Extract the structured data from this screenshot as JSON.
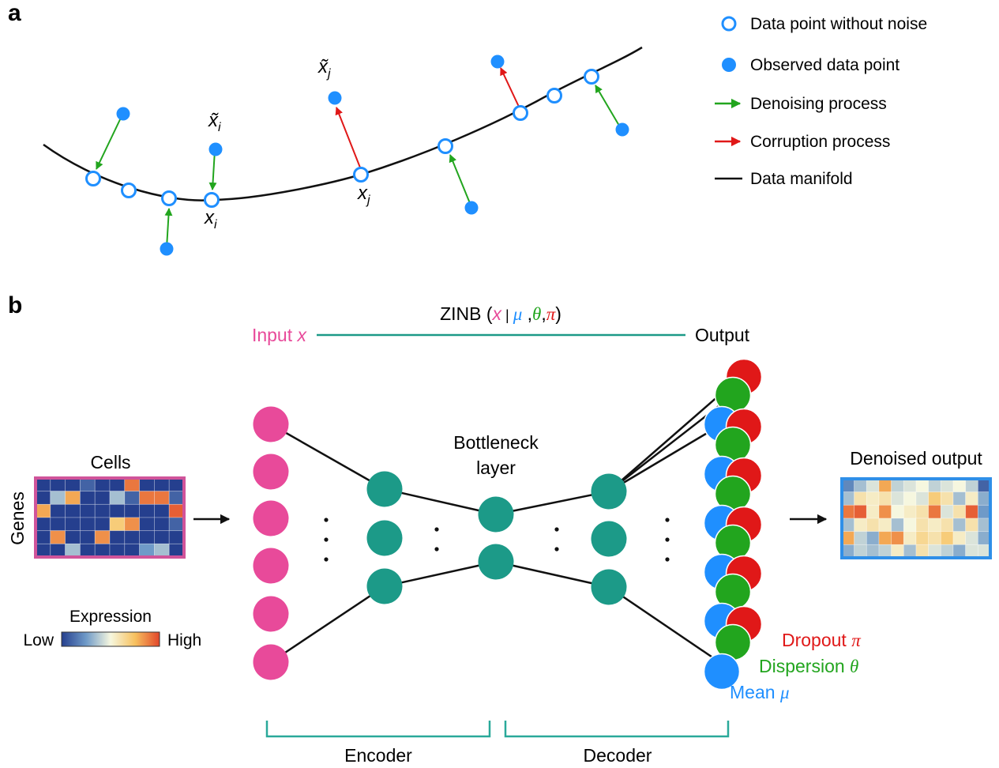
{
  "panels": {
    "a": "a",
    "b": "b"
  },
  "legend": [
    {
      "icon": "open-circle-icon",
      "label": "Data point without noise"
    },
    {
      "icon": "filled-circle-icon",
      "label": "Observed data point"
    },
    {
      "icon": "green-arrow-icon",
      "label": "Denoising process"
    },
    {
      "icon": "red-arrow-icon",
      "label": "Corruption process"
    },
    {
      "icon": "black-line-icon",
      "label": "Data manifold"
    }
  ],
  "panel_a_labels": {
    "xi_tilde": "x̃",
    "xi_tilde_sub": "i",
    "xj_tilde": "x̃",
    "xj_tilde_sub": "j",
    "xi": "x",
    "xi_sub": "i",
    "xj": "x",
    "xj_sub": "j"
  },
  "zinb": {
    "prefix": "ZINB (",
    "x": "x",
    "bar": " | ",
    "mu": "μ",
    "comma1": " ,",
    "theta": "θ",
    "comma2": ",",
    "pi": "π",
    "suffix": ")"
  },
  "input_label": {
    "text": "Input ",
    "var": "x"
  },
  "output_label": "Output",
  "cells_label": "Cells",
  "genes_label": "Genes",
  "expression": {
    "title": "Expression",
    "low": "Low",
    "high": "High"
  },
  "bottleneck": [
    "Bottleneck",
    "layer"
  ],
  "denoised_output": "Denoised output",
  "params": {
    "dropout": "Dropout ",
    "dropout_sym": "π",
    "dispersion": "Dispersion ",
    "dispersion_sym": "θ",
    "mean": "Mean ",
    "mean_sym": "μ"
  },
  "encoder": "Encoder",
  "decoder": "Decoder",
  "colors": {
    "blue": "#1f8fff",
    "green": "#22a51e",
    "red": "#e01818",
    "magenta": "#e84a9a",
    "teal": "#1c9a88",
    "bracket": "#2aa99a",
    "heatmap_in_border": "#d0549a",
    "heatmap_out_border": "#2f8fe8"
  },
  "heatmap_input": [
    [
      0,
      0,
      0,
      0.1,
      0,
      0,
      0.9,
      0,
      0,
      0
    ],
    [
      0,
      0.35,
      0.8,
      0,
      0,
      0.35,
      0.1,
      0.9,
      0.9,
      0.1
    ],
    [
      0.8,
      0,
      0,
      0,
      0,
      0,
      0,
      0,
      0,
      0.95
    ],
    [
      0,
      0,
      0,
      0,
      0,
      0.7,
      0.85,
      0,
      0,
      0.1
    ],
    [
      0,
      0.85,
      0,
      0,
      0.85,
      0,
      0,
      0,
      0,
      0
    ],
    [
      0,
      0,
      0.35,
      0,
      0,
      0,
      0,
      0.25,
      0.35,
      0
    ]
  ],
  "heatmap_output": [
    [
      0.2,
      0.35,
      0.45,
      0.8,
      0.4,
      0.45,
      0.5,
      0.4,
      0.45,
      0.5,
      0.4,
      0.1
    ],
    [
      0.35,
      0.6,
      0.55,
      0.6,
      0.45,
      0.5,
      0.45,
      0.7,
      0.6,
      0.35,
      0.55,
      0.3
    ],
    [
      0.9,
      0.95,
      0.55,
      0.85,
      0.5,
      0.55,
      0.6,
      0.9,
      0.45,
      0.6,
      0.95,
      0.25
    ],
    [
      0.35,
      0.55,
      0.6,
      0.55,
      0.35,
      0.5,
      0.6,
      0.55,
      0.6,
      0.35,
      0.6,
      0.35
    ],
    [
      0.8,
      0.4,
      0.3,
      0.8,
      0.85,
      0.55,
      0.65,
      0.6,
      0.7,
      0.55,
      0.45,
      0.3
    ],
    [
      0.3,
      0.4,
      0.35,
      0.4,
      0.55,
      0.35,
      0.6,
      0.45,
      0.4,
      0.3,
      0.45,
      0.45
    ]
  ]
}
